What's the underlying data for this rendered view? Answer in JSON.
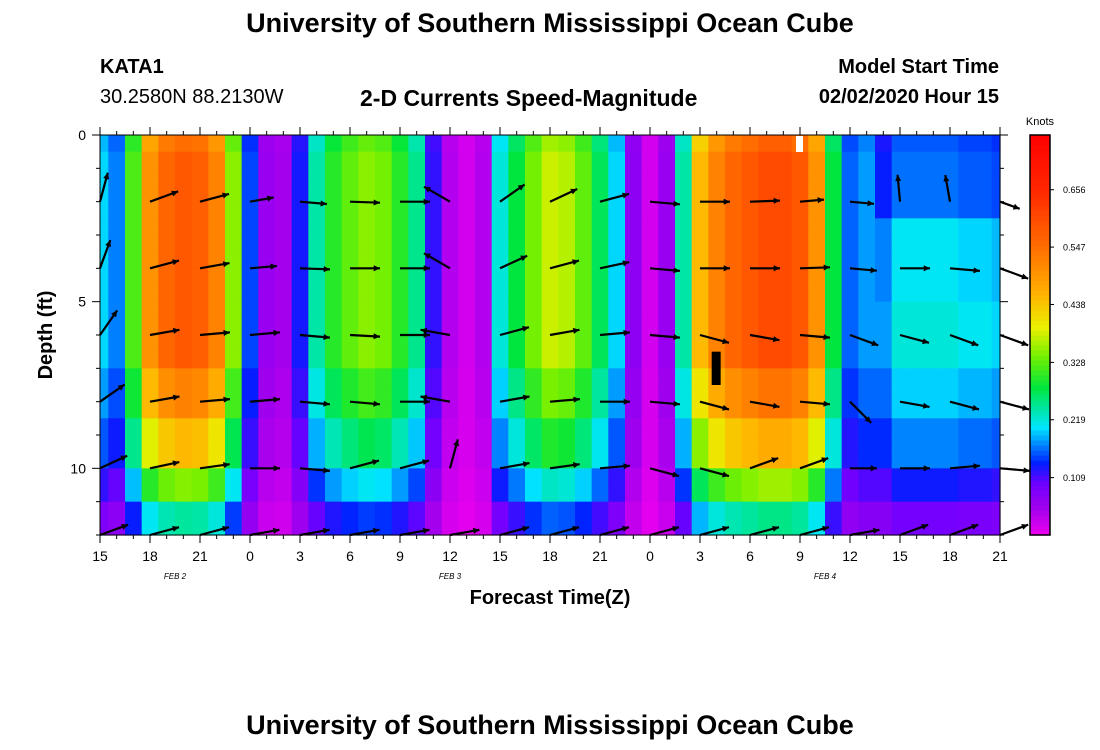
{
  "header": {
    "title_top": "University of Southern Mississippi Ocean Cube",
    "station_id": "KATA1",
    "coordinates": "30.2580N 88.2130W",
    "plot_title": "2-D Currents Speed-Magnitude",
    "model_start_label": "Model Start Time",
    "model_start_value": "02/02/2020 Hour 15",
    "title_bottom": "University of Southern Mississippi Ocean Cube"
  },
  "chart_data": {
    "type": "heatmap",
    "title": "2-D Currents Speed-Magnitude",
    "xlabel": "Forecast Time(Z)",
    "ylabel": "Depth (ft)",
    "xlim": [
      15,
      69
    ],
    "ylim": [
      0,
      12
    ],
    "x_tick_values": [
      15,
      18,
      21,
      24,
      27,
      30,
      33,
      36,
      39,
      42,
      45,
      48,
      51,
      54,
      57,
      60,
      63,
      66,
      69
    ],
    "x_tick_labels": [
      "15",
      "18",
      "21",
      "0",
      "3",
      "6",
      "9",
      "12",
      "15",
      "18",
      "21",
      "0",
      "3",
      "6",
      "9",
      "12",
      "15",
      "18",
      "21"
    ],
    "y_tick_values": [
      0,
      5,
      10
    ],
    "y_tick_labels": [
      "0",
      "5",
      "10"
    ],
    "date_labels": [
      {
        "text": "FEB 2",
        "x": 19.5
      },
      {
        "text": "FEB 3",
        "x": 36
      },
      {
        "text": "FEB 4",
        "x": 58.5
      }
    ],
    "colorbar": {
      "unit": "Knots",
      "range": [
        0,
        0.76
      ],
      "tick_values": [
        0.109,
        0.219,
        0.328,
        0.438,
        0.547,
        0.656
      ],
      "tick_labels": [
        "0.109",
        "0.219",
        "0.328",
        "0.438",
        "0.547",
        "0.656"
      ]
    },
    "time_columns": [
      15,
      16,
      17,
      18,
      19,
      20,
      21,
      22,
      23,
      24,
      25,
      26,
      27,
      28,
      29,
      30,
      31,
      32,
      33,
      34,
      35,
      36,
      37,
      38,
      39,
      40,
      41,
      42,
      43,
      44,
      45,
      46,
      47,
      48,
      49,
      50,
      51,
      52,
      53,
      54,
      55,
      56,
      57,
      58,
      59,
      60,
      61,
      62,
      63,
      64,
      65,
      66,
      67,
      68,
      69
    ],
    "speed_profile_knots": [
      0.2,
      0.17,
      0.32,
      0.5,
      0.56,
      0.58,
      0.57,
      0.52,
      0.35,
      0.15,
      0.06,
      0.05,
      0.13,
      0.24,
      0.3,
      0.33,
      0.35,
      0.34,
      0.3,
      0.25,
      0.12,
      0.04,
      0.02,
      0.04,
      0.22,
      0.28,
      0.34,
      0.38,
      0.37,
      0.33,
      0.27,
      0.2,
      0.07,
      0.02,
      0.06,
      0.24,
      0.45,
      0.52,
      0.56,
      0.58,
      0.6,
      0.6,
      0.58,
      0.5,
      0.28,
      0.16,
      0.18,
      0.18,
      0.22,
      0.22,
      0.22,
      0.22,
      0.21,
      0.21,
      0.2
    ],
    "vectors": {
      "x": [
        15,
        18,
        21,
        24,
        27,
        30,
        33,
        36,
        39,
        42,
        45,
        48,
        51,
        54,
        57,
        60,
        63,
        66,
        69
      ],
      "depths": [
        2,
        4,
        6,
        8,
        10,
        12
      ],
      "angles_deg": [
        [
          75,
          20,
          15,
          10,
          -5,
          -2,
          0,
          150,
          35,
          25,
          15,
          -5,
          0,
          2,
          5,
          -5,
          95,
          100,
          -20
        ],
        [
          70,
          15,
          10,
          5,
          -2,
          0,
          0,
          150,
          25,
          15,
          12,
          -5,
          0,
          0,
          2,
          -5,
          0,
          -5,
          -20
        ],
        [
          55,
          10,
          5,
          5,
          -5,
          -3,
          0,
          170,
          15,
          10,
          5,
          -5,
          -15,
          -10,
          -5,
          -20,
          -15,
          -20,
          -20
        ],
        [
          35,
          10,
          5,
          5,
          -5,
          -5,
          0,
          170,
          10,
          5,
          0,
          -5,
          -15,
          -10,
          -5,
          -45,
          -10,
          -15,
          -15
        ],
        [
          25,
          12,
          8,
          0,
          -5,
          15,
          15,
          75,
          10,
          8,
          5,
          -15,
          -15,
          20,
          20,
          0,
          0,
          5,
          -5
        ],
        [
          20,
          15,
          15,
          10,
          10,
          10,
          10,
          10,
          15,
          15,
          15,
          15,
          15,
          15,
          15,
          10,
          20,
          20,
          20
        ]
      ],
      "lengths": [
        [
          1,
          1,
          1,
          0.8,
          0.9,
          1,
          1,
          1,
          1,
          1,
          1,
          1,
          1,
          1,
          0.8,
          0.8,
          0.9,
          0.9,
          0.7
        ],
        [
          1,
          1,
          1,
          0.9,
          1,
          1,
          1,
          1,
          1,
          1,
          1,
          1,
          1,
          1,
          1,
          0.9,
          1,
          1,
          1
        ],
        [
          1,
          1,
          1,
          1,
          1,
          1,
          1,
          1,
          1,
          1,
          1,
          1,
          1,
          1,
          1,
          1,
          1,
          1,
          1
        ],
        [
          1,
          1,
          1,
          1,
          1,
          1,
          1,
          1,
          1,
          1,
          1,
          1,
          1,
          1,
          1,
          1,
          1,
          1,
          1
        ],
        [
          1,
          1,
          1,
          1,
          1,
          1,
          1,
          1,
          1,
          1,
          1,
          1,
          1,
          1,
          1,
          0.9,
          1,
          1,
          1
        ],
        [
          1,
          1,
          1,
          1,
          1,
          1,
          1,
          1,
          1,
          1,
          1,
          1,
          1,
          1,
          1,
          1,
          1,
          1,
          1
        ]
      ]
    }
  }
}
